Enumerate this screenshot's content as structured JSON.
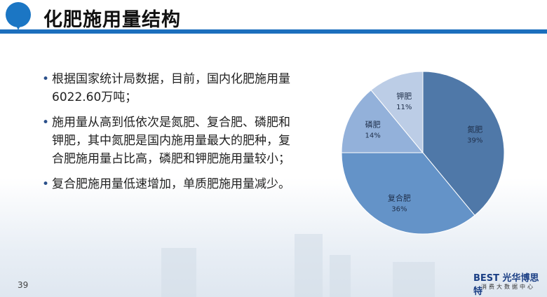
{
  "title": "化肥施用量结构",
  "bullets": [
    "根据国家统计局数据，目前，国内化肥施用量6022.60万吨；",
    "施用量从高到低依次是氮肥、复合肥、磷肥和钾肥，其中氮肥是国内施用量最大的肥种，复合肥施用量占比高，磷肥和钾肥施用量较小；",
    " 复合肥施用量低速增加，单质肥施用量减少。"
  ],
  "page_number": "39",
  "brand": {
    "name": "BEST 光华博思特",
    "subtitle": "消费大数据中心"
  },
  "chart_data": {
    "type": "pie",
    "categories": [
      "氮肥",
      "复合肥",
      "磷肥",
      "钾肥"
    ],
    "values": [
      39,
      36,
      14,
      11
    ],
    "labels": [
      "39%",
      "36%",
      "14%",
      "11%"
    ],
    "colors": [
      "#4f78a8",
      "#6493c8",
      "#93b1da",
      "#bccde6"
    ],
    "start": "12 o'clock, clockwise"
  }
}
